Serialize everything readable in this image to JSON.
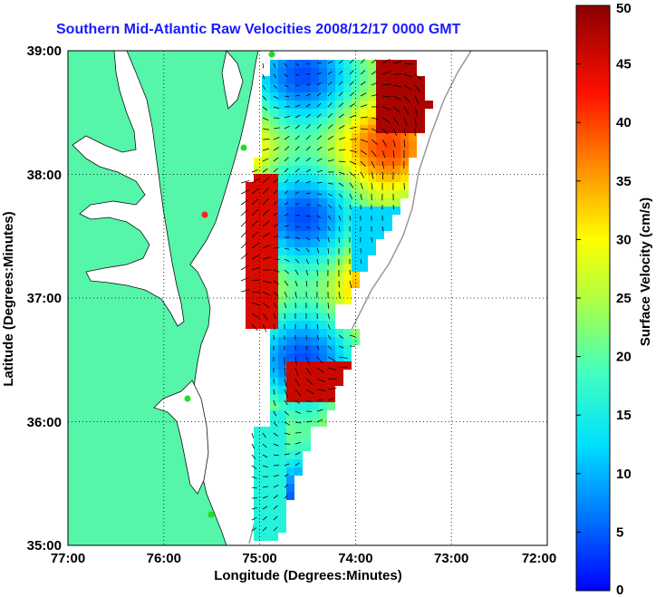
{
  "title": "Southern Mid-Atlantic Raw Velocities 2008/12/17 0000 GMT",
  "axes": {
    "xlabel": "Longitude (Degrees:Minutes)",
    "ylabel": "Latitude (Degrees:Minutes)",
    "xticks": [
      "77:00",
      "76:00",
      "75:00",
      "74:00",
      "73:00",
      "72:00"
    ],
    "yticks": [
      "39:00",
      "38:00",
      "37:00",
      "36:00",
      "35:00"
    ],
    "xlim_deg_west": [
      77,
      72
    ],
    "ylim_deg_north": [
      35,
      39
    ],
    "grid": "dotted"
  },
  "colorbar": {
    "label": "Surface Velocity (cm/s)",
    "ticks": [
      "50",
      "45",
      "40",
      "35",
      "30",
      "25",
      "20",
      "15",
      "10",
      "5",
      "0"
    ],
    "range": [
      0,
      50
    ]
  },
  "colors": {
    "land": "#55f5aa",
    "water": "#ffffff",
    "title": "#1a1aff",
    "station": "#22dd22",
    "station_red": "#ff2020"
  }
}
